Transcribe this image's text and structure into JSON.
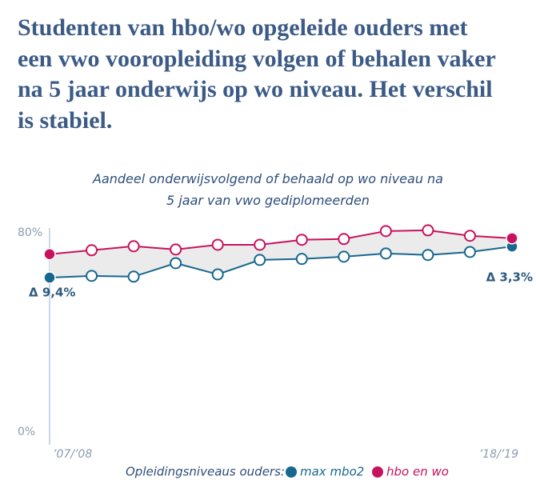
{
  "chart_data": {
    "type": "line",
    "title": "Studenten van hbo/wo opgeleide ouders met een vwo vooropleiding volgen of behalen vaker na 5 jaar onderwijs op wo niveau. Het verschil is stabiel.",
    "subtitle": "Aandeel onderwijsvolgend of behaald op wo niveau na 5 jaar van vwo gediplomeerden",
    "categories": [
      "’07/’08",
      null,
      null,
      null,
      null,
      null,
      null,
      null,
      null,
      null,
      null,
      "’18/’19"
    ],
    "series": [
      {
        "name": "max mbo2",
        "color": "#17678f",
        "values": [
          62.0,
          62.7,
          62.4,
          67.8,
          63.3,
          69.1,
          69.5,
          70.4,
          71.7,
          71.1,
          72.3,
          74.5
        ]
      },
      {
        "name": "hbo en wo",
        "color": "#c8125e",
        "values": [
          71.4,
          73.0,
          74.6,
          73.3,
          75.2,
          75.2,
          77.2,
          77.5,
          80.7,
          81.0,
          78.8,
          77.8
        ]
      }
    ],
    "ylim": [
      0,
      80
    ],
    "yticks": [
      {
        "value": 0,
        "label": "0%"
      },
      {
        "value": 80,
        "label": "80%"
      }
    ],
    "annotations": [
      "Δ 9,4%",
      "Δ 3,3%"
    ],
    "legend_title": "Opleidingsniveaus ouders:",
    "grid": false
  }
}
